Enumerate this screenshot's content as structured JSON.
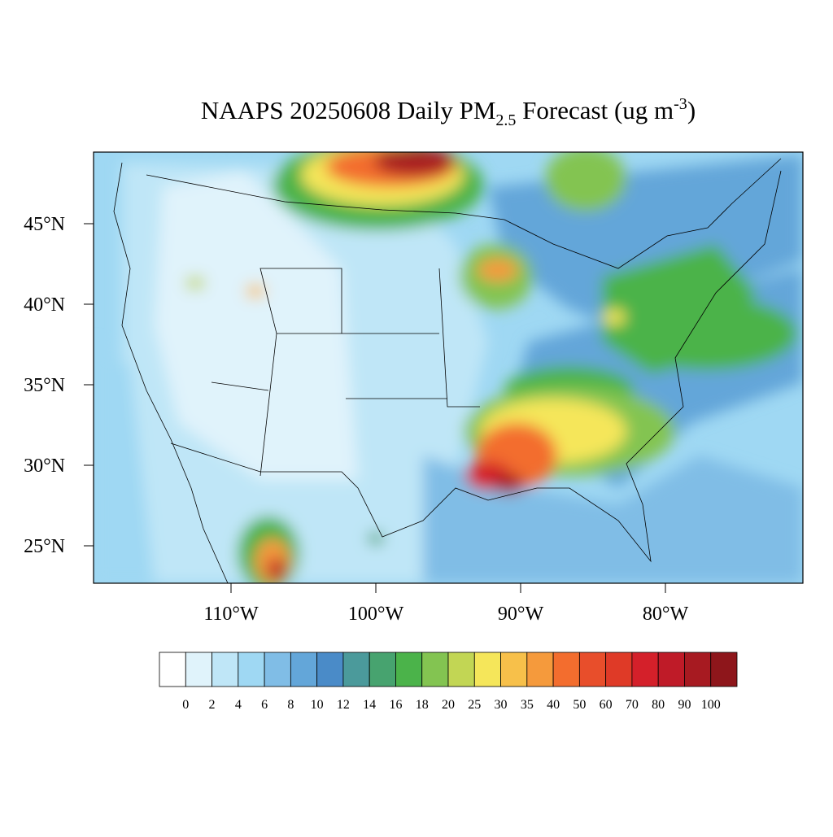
{
  "header": {
    "title_main": "NAAPS 20250608 Daily PM",
    "title_sub": "2.5",
    "title_mid": " Forecast (ug m",
    "title_sup": "-3",
    "title_end": ")"
  },
  "map": {
    "lat_ticks": [
      {
        "value": 45,
        "label": "45°N"
      },
      {
        "value": 40,
        "label": "40°N"
      },
      {
        "value": 35,
        "label": "35°N"
      },
      {
        "value": 30,
        "label": "30°N"
      },
      {
        "value": 25,
        "label": "25°N"
      }
    ],
    "lon_ticks": [
      {
        "value": -110,
        "label": "110°W"
      },
      {
        "value": -100,
        "label": "100°W"
      },
      {
        "value": -90,
        "label": "90°W"
      },
      {
        "value": -80,
        "label": "80°W"
      }
    ]
  },
  "colorbar": {
    "levels": [
      0,
      2,
      4,
      6,
      8,
      10,
      12,
      14,
      16,
      18,
      20,
      25,
      30,
      35,
      40,
      50,
      60,
      70,
      80,
      90,
      100
    ],
    "colors": [
      "#ffffff",
      "#e0f3fb",
      "#bfe6f7",
      "#9fd8f3",
      "#80bde6",
      "#63a6d9",
      "#4a8bc8",
      "#4b9a9b",
      "#47a36f",
      "#4bb34a",
      "#83c451",
      "#c2d654",
      "#f5e65a",
      "#f7c04a",
      "#f59a3c",
      "#f36d2e",
      "#e84e2b",
      "#df3a27",
      "#d4202a",
      "#bf1b28",
      "#a71a21",
      "#8e161b"
    ]
  }
}
